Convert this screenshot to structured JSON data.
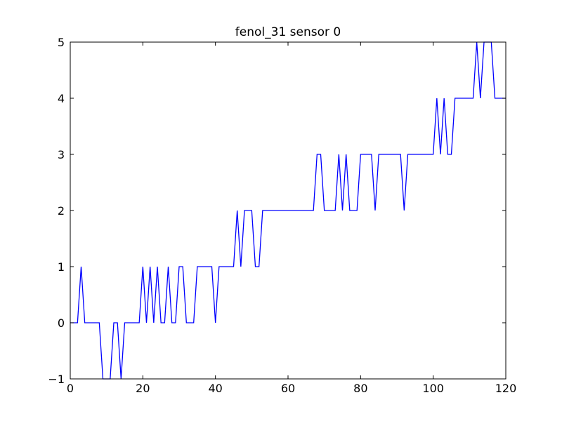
{
  "chart_data": {
    "type": "line",
    "title": "fenol_31 sensor 0",
    "xlabel": "",
    "ylabel": "",
    "xlim": [
      0,
      120
    ],
    "ylim": [
      -1,
      5
    ],
    "xticks": [
      0,
      20,
      40,
      60,
      80,
      100,
      120
    ],
    "yticks": [
      -1,
      0,
      1,
      2,
      3,
      4,
      5
    ],
    "x_tick_labels": [
      "0",
      "20",
      "40",
      "60",
      "80",
      "100",
      "120"
    ],
    "y_tick_labels": [
      "−1",
      "0",
      "1",
      "2",
      "3",
      "4",
      "5"
    ],
    "grid": false,
    "legend": "none",
    "series": [
      {
        "color": "#0000ff",
        "x": [
          0,
          1,
          2,
          3,
          4,
          5,
          6,
          7,
          8,
          9,
          10,
          11,
          12,
          13,
          14,
          15,
          16,
          17,
          18,
          19,
          20,
          21,
          22,
          23,
          24,
          25,
          26,
          27,
          28,
          29,
          30,
          31,
          32,
          33,
          34,
          35,
          36,
          37,
          38,
          39,
          40,
          41,
          42,
          43,
          44,
          45,
          46,
          47,
          48,
          49,
          50,
          51,
          52,
          53,
          54,
          55,
          56,
          57,
          58,
          59,
          60,
          61,
          62,
          63,
          64,
          65,
          66,
          67,
          68,
          69,
          70,
          71,
          72,
          73,
          74,
          75,
          76,
          77,
          78,
          79,
          80,
          81,
          82,
          83,
          84,
          85,
          86,
          87,
          88,
          89,
          90,
          91,
          92,
          93,
          94,
          95,
          96,
          97,
          98,
          99,
          100,
          101,
          102,
          103,
          104,
          105,
          106,
          107,
          108,
          109,
          110,
          111,
          112,
          113,
          114,
          115,
          116,
          117,
          118,
          119,
          120
        ],
        "y": [
          0,
          0,
          0,
          1,
          0,
          0,
          0,
          0,
          0,
          -1,
          -1,
          -1,
          0,
          0,
          -1,
          0,
          0,
          0,
          0,
          0,
          1,
          0,
          1,
          0,
          1,
          0,
          0,
          1,
          0,
          0,
          1,
          1,
          0,
          0,
          0,
          1,
          1,
          1,
          1,
          1,
          0,
          1,
          1,
          1,
          1,
          1,
          2,
          1,
          2,
          2,
          2,
          1,
          1,
          2,
          2,
          2,
          2,
          2,
          2,
          2,
          2,
          2,
          2,
          2,
          2,
          2,
          2,
          2,
          3,
          3,
          2,
          2,
          2,
          2,
          3,
          2,
          3,
          2,
          2,
          2,
          3,
          3,
          3,
          3,
          2,
          3,
          3,
          3,
          3,
          3,
          3,
          3,
          2,
          3,
          3,
          3,
          3,
          3,
          3,
          3,
          3,
          4,
          3,
          4,
          3,
          3,
          4,
          4,
          4,
          4,
          4,
          4,
          5,
          4,
          5,
          5,
          5,
          4,
          4,
          4,
          4
        ]
      }
    ]
  }
}
